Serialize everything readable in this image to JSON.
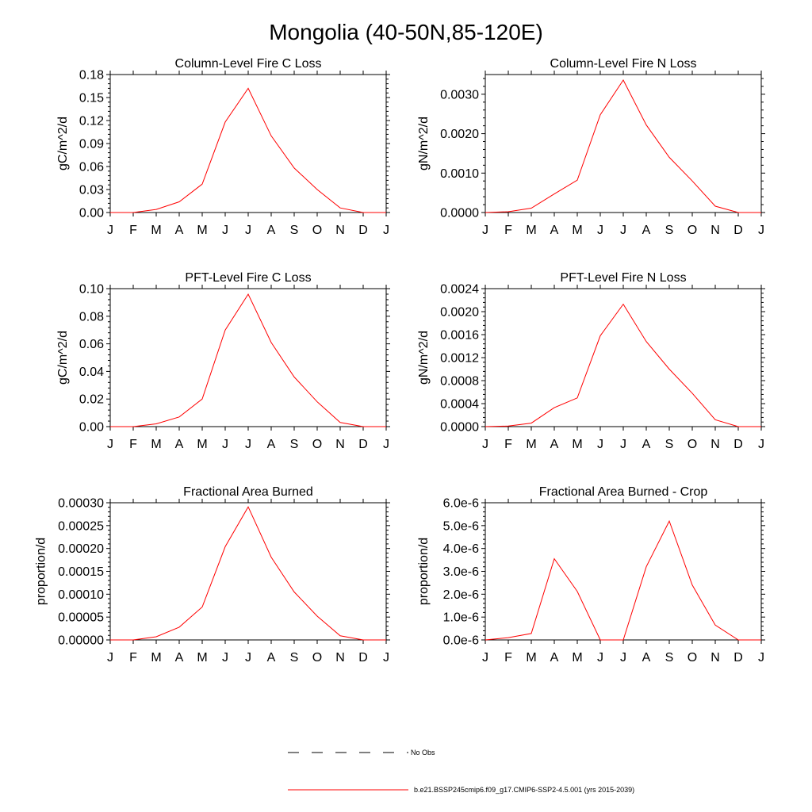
{
  "figure": {
    "title": "Mongolia (40-50N,85-120E)",
    "legend": [
      {
        "label": "No Obs",
        "color": "#000000",
        "dash": true
      },
      {
        "label": "b.e21.BSSP245cmip6.f09_g17.CMIP6-SSP2-4.5.001 (yrs 2015-2039)",
        "color": "#ff0000",
        "dash": false
      }
    ],
    "line_color": "#ff0000"
  },
  "chart_data": [
    {
      "type": "line",
      "title": "Column-Level Fire C Loss",
      "ylabel": "gC/m^2/d",
      "xlabel": "",
      "categories": [
        "J",
        "F",
        "M",
        "A",
        "M",
        "J",
        "J",
        "A",
        "S",
        "O",
        "N",
        "D",
        "J"
      ],
      "ylim": [
        0,
        0.18
      ],
      "yticks": [
        0,
        0.03,
        0.06,
        0.09,
        0.12,
        0.15,
        0.18
      ],
      "ytick_labels": [
        "0.00",
        "0.03",
        "0.06",
        "0.09",
        "0.12",
        "0.15",
        "0.18"
      ],
      "values": [
        0,
        0,
        0.004,
        0.014,
        0.037,
        0.118,
        0.162,
        0.1,
        0.058,
        0.03,
        0.006,
        0,
        0
      ],
      "grid": false
    },
    {
      "type": "line",
      "title": "Column-Level Fire N Loss",
      "ylabel": "gN/m^2/d",
      "xlabel": "",
      "categories": [
        "J",
        "F",
        "M",
        "A",
        "M",
        "J",
        "J",
        "A",
        "S",
        "O",
        "N",
        "D",
        "J"
      ],
      "ylim": [
        0,
        0.0035
      ],
      "yticks": [
        0,
        0.001,
        0.002,
        0.003
      ],
      "ytick_labels": [
        "0.0000",
        "0.0010",
        "0.0020",
        "0.0030"
      ],
      "values": [
        0,
        2e-05,
        0.00011,
        0.00047,
        0.00082,
        0.00248,
        0.00336,
        0.00222,
        0.0014,
        0.0008,
        0.00016,
        0,
        0
      ],
      "grid": false
    },
    {
      "type": "line",
      "title": "PFT-Level Fire C Loss",
      "ylabel": "gC/m^2/d",
      "xlabel": "",
      "categories": [
        "J",
        "F",
        "M",
        "A",
        "M",
        "J",
        "J",
        "A",
        "S",
        "O",
        "N",
        "D",
        "J"
      ],
      "ylim": [
        0,
        0.1
      ],
      "yticks": [
        0,
        0.02,
        0.04,
        0.06,
        0.08,
        0.1
      ],
      "ytick_labels": [
        "0.00",
        "0.02",
        "0.04",
        "0.06",
        "0.08",
        "0.10"
      ],
      "values": [
        0,
        0,
        0.002,
        0.007,
        0.02,
        0.07,
        0.096,
        0.061,
        0.036,
        0.018,
        0.003,
        0,
        0
      ],
      "grid": false
    },
    {
      "type": "line",
      "title": "PFT-Level Fire N Loss",
      "ylabel": "gN/m^2/d",
      "xlabel": "",
      "categories": [
        "J",
        "F",
        "M",
        "A",
        "M",
        "J",
        "J",
        "A",
        "S",
        "O",
        "N",
        "D",
        "J"
      ],
      "ylim": [
        0,
        0.0024
      ],
      "yticks": [
        0,
        0.0004,
        0.0008,
        0.0012,
        0.0016,
        0.002,
        0.0024
      ],
      "ytick_labels": [
        "0.0000",
        "0.0004",
        "0.0008",
        "0.0012",
        "0.0016",
        "0.0020",
        "0.0024"
      ],
      "values": [
        0,
        1e-05,
        6e-05,
        0.00033,
        0.0005,
        0.00158,
        0.00213,
        0.00148,
        0.001,
        0.00058,
        0.00012,
        0,
        0
      ],
      "grid": false
    },
    {
      "type": "line",
      "title": "Fractional Area Burned",
      "ylabel": "proportion/d",
      "xlabel": "",
      "categories": [
        "J",
        "F",
        "M",
        "A",
        "M",
        "J",
        "J",
        "A",
        "S",
        "O",
        "N",
        "D",
        "J"
      ],
      "ylim": [
        0,
        0.0003
      ],
      "yticks": [
        0,
        5e-05,
        0.0001,
        0.00015,
        0.0002,
        0.00025,
        0.0003
      ],
      "ytick_labels": [
        "0.00000",
        "0.00005",
        "0.00010",
        "0.00015",
        "0.00020",
        "0.00025",
        "0.00030"
      ],
      "values": [
        0,
        0,
        7e-06,
        2.8e-05,
        7.2e-05,
        0.000204,
        0.000291,
        0.000181,
        0.000105,
        5.2e-05,
        9e-06,
        0,
        0
      ],
      "grid": false
    },
    {
      "type": "line",
      "title": "Fractional Area Burned - Crop",
      "ylabel": "proportion/d",
      "xlabel": "",
      "categories": [
        "J",
        "F",
        "M",
        "A",
        "M",
        "J",
        "J",
        "A",
        "S",
        "O",
        "N",
        "D",
        "J"
      ],
      "ylim": [
        0,
        6e-06
      ],
      "yticks": [
        0,
        1e-06,
        2e-06,
        3e-06,
        4e-06,
        5e-06,
        6e-06
      ],
      "ytick_labels": [
        "0.0e-6",
        "1.0e-6",
        "2.0e-6",
        "3.0e-6",
        "4.0e-6",
        "5.0e-6",
        "6.0e-6"
      ],
      "values": [
        0,
        1e-07,
        2.8e-07,
        3.55e-06,
        2.12e-06,
        0,
        0,
        3.2e-06,
        5.2e-06,
        2.4e-06,
        6.5e-07,
        0,
        0
      ],
      "grid": false
    }
  ]
}
